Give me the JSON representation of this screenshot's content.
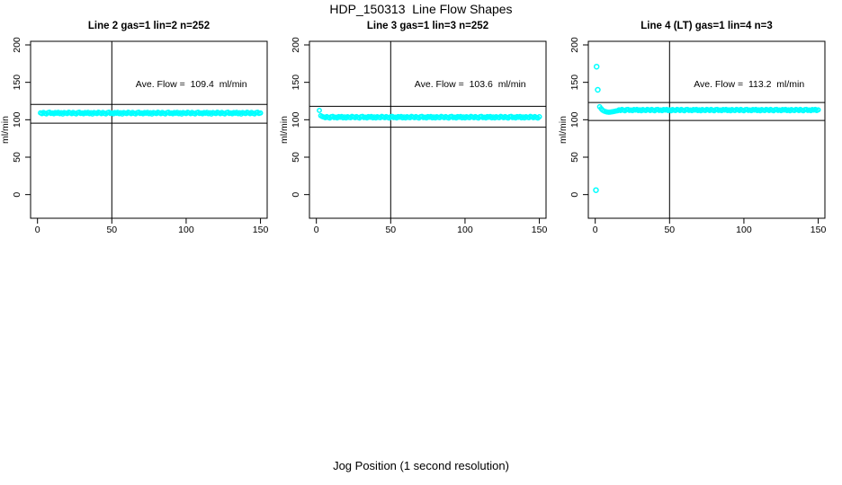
{
  "figure": {
    "title": "HDP_150313  Line Flow Shapes",
    "xlabel": "Jog Position (1 second resolution)",
    "colors": {
      "points": "#00ffff",
      "axis": "#000000",
      "background": "#ffffff"
    }
  },
  "chart_data": [
    {
      "type": "scatter",
      "title": "Line 2 gas=1 lin=2 n=252",
      "annotation": "Ave. Flow =  109.4  ml/min",
      "ave_flow_ml_min": 109.4,
      "ylabel": "ml/min",
      "xlim": [
        -4.65,
        154.5
      ],
      "ylim": [
        -31.6,
        204.8
      ],
      "xticks": [
        0,
        50,
        100,
        150
      ],
      "yticks": [
        0,
        50,
        100,
        150,
        200
      ],
      "vline_x": 50,
      "hlines": [
        120.5,
        95.5
      ],
      "annotation_pos": {
        "x": 103.5,
        "y": 148
      },
      "series": {
        "x_start": 2,
        "x_step": 1,
        "y": [
          109.2,
          108.2,
          109.8,
          108.6,
          107.8,
          109.5,
          110.1,
          108.4,
          109,
          108,
          109.7,
          108.7,
          109.9,
          108.1,
          109.3,
          107.7,
          109.6,
          108.9,
          108.3,
          110,
          109.2,
          108.2,
          109.8,
          108.6,
          107.8,
          109.5,
          110.1,
          108.4,
          109,
          108,
          109.7,
          108.7,
          109.9,
          108.1,
          109.3,
          107.7,
          109.6,
          108.9,
          108.3,
          110,
          109.2,
          108.2,
          109.8,
          108.6,
          107.8,
          109.5,
          110.1,
          108.4,
          109,
          108,
          109.7,
          108.7,
          109.9,
          108.1,
          109.3,
          107.7,
          109.6,
          108.9,
          108.3,
          110,
          109.2,
          108.2,
          109.8,
          108.6,
          107.8,
          109.5,
          110.1,
          108.4,
          109,
          108,
          109.7,
          108.7,
          109.9,
          108.1,
          109.3,
          107.7,
          109.6,
          108.9,
          108.3,
          110,
          109.2,
          108.2,
          109.8,
          108.6,
          107.8,
          109.5,
          110.1,
          108.4,
          109,
          108,
          109.7,
          108.7,
          109.9,
          108.1,
          109.3,
          107.7,
          109.6,
          108.9,
          108.3,
          110,
          109.2,
          108.2,
          109.8,
          108.6,
          107.8,
          109.5,
          110.1,
          108.4,
          109,
          108,
          109.7,
          108.7,
          109.9,
          108.1,
          109.3,
          107.7,
          109.6,
          108.9,
          108.3,
          110,
          109.2,
          108.2,
          109.8,
          108.6,
          107.8,
          109.5,
          110.1,
          108.4,
          109,
          108,
          109.7,
          108.7,
          109.9,
          108.1,
          109.3,
          107.7,
          109.6,
          108.9,
          108.3,
          110,
          109.2,
          108.2,
          109.8,
          108.6,
          107.8,
          109.5,
          110.1,
          108.4,
          109
        ]
      },
      "outliers": []
    },
    {
      "type": "scatter",
      "title": "Line 3 gas=1 lin=3 n=252",
      "annotation": "Ave. Flow =  103.6  ml/min",
      "ave_flow_ml_min": 103.6,
      "ylabel": "ml/min",
      "xlim": [
        -4.65,
        154.5
      ],
      "ylim": [
        -31.6,
        204.8
      ],
      "xticks": [
        0,
        50,
        100,
        150
      ],
      "yticks": [
        0,
        50,
        100,
        150,
        200
      ],
      "vline_x": 50,
      "hlines": [
        118,
        90
      ],
      "annotation_pos": {
        "x": 103.5,
        "y": 148
      },
      "series": {
        "x_start": 2,
        "x_step": 1,
        "y": [
          112.5,
          105.5,
          104.2,
          103.7,
          102.7,
          104.3,
          103.1,
          102.3,
          104,
          104.5,
          102.9,
          103.5,
          102.5,
          104.2,
          103.4,
          104.4,
          102.6,
          103.8,
          102.4,
          104.1,
          103.2,
          102.8,
          104.5,
          103.7,
          102.7,
          104.3,
          103.1,
          102.3,
          104,
          104.5,
          102.9,
          103.5,
          102.5,
          104.2,
          103.4,
          104.4,
          102.6,
          103.8,
          102.4,
          104.1,
          103.2,
          102.8,
          104.5,
          103.7,
          102.7,
          104.3,
          103.1,
          102.3,
          104,
          104.5,
          102.9,
          103.5,
          102.5,
          104.2,
          103.4,
          104.4,
          102.6,
          103.8,
          102.4,
          104.1,
          103.2,
          102.8,
          104.5,
          103.7,
          102.7,
          104.3,
          103.1,
          102.3,
          104,
          104.5,
          102.9,
          103.5,
          102.5,
          104.2,
          103.4,
          104.4,
          102.6,
          103.8,
          102.4,
          104.1,
          103.2,
          102.8,
          104.5,
          103.7,
          102.7,
          104.3,
          103.1,
          102.3,
          104,
          104.5,
          102.9,
          103.5,
          102.5,
          104.2,
          103.4,
          104.4,
          102.6,
          103.8,
          102.4,
          104.1,
          103.2,
          102.8,
          104.5,
          103.7,
          102.7,
          104.3,
          103.1,
          102.3,
          104,
          104.5,
          102.9,
          103.5,
          102.5,
          104.2,
          103.4,
          104.4,
          102.6,
          103.8,
          102.4,
          104.1,
          103.2,
          102.8,
          104.5,
          103.7,
          102.7,
          104.3,
          103.1,
          102.3,
          104,
          104.5,
          102.9,
          103.5,
          102.5,
          104.2,
          103.4,
          104.4,
          102.6,
          103.8,
          102.4,
          104.1,
          103.2,
          102.8,
          104.5,
          103.7,
          102.7,
          104.3,
          103.1,
          102.3,
          104
        ]
      },
      "outliers": []
    },
    {
      "type": "scatter",
      "title": "Line 4 (LT) gas=1 lin=4 n=3",
      "annotation": "Ave. Flow =  113.2  ml/min",
      "ave_flow_ml_min": 113.2,
      "ylabel": "ml/min",
      "xlim": [
        -4.65,
        154.5
      ],
      "ylim": [
        -31.6,
        204.8
      ],
      "xticks": [
        0,
        50,
        100,
        150
      ],
      "yticks": [
        0,
        50,
        100,
        150,
        200
      ],
      "vline_x": 50,
      "hlines": [
        123,
        99
      ],
      "annotation_pos": {
        "x": 103.5,
        "y": 148
      },
      "series": {
        "x_start": 3,
        "x_step": 1,
        "y": [
          117.5,
          114.8,
          112.8,
          111.6,
          110.8,
          110.3,
          110.1,
          110.2,
          110.5,
          110.9,
          111.3,
          111.7,
          112,
          113.3,
          112.4,
          113.8,
          112.7,
          112,
          113.5,
          113.9,
          112.5,
          113.1,
          112.2,
          113.7,
          112.9,
          113.8,
          112.3,
          113.3,
          112,
          113.6,
          112.8,
          112.4,
          113.9,
          113.3,
          112.4,
          113.8,
          112.7,
          112,
          113.5,
          113.9,
          112.5,
          113.1,
          112.2,
          113.7,
          112.9,
          113.8,
          112.3,
          113.3,
          112,
          113.6,
          112.8,
          112.4,
          113.9,
          113.3,
          112.4,
          113.8,
          112.7,
          112,
          113.5,
          113.9,
          112.5,
          113.1,
          112.2,
          113.7,
          112.9,
          113.8,
          112.3,
          113.3,
          112,
          113.6,
          112.8,
          112.4,
          113.9,
          113.3,
          112.4,
          113.8,
          112.7,
          112,
          113.5,
          113.9,
          112.5,
          113.1,
          112.2,
          113.7,
          112.9,
          113.8,
          112.3,
          113.3,
          112,
          113.6,
          112.8,
          112.4,
          113.9,
          113.3,
          112.4,
          113.8,
          112.7,
          112,
          113.5,
          113.9,
          112.5,
          113.1,
          112.2,
          113.7,
          112.9,
          113.8,
          112.3,
          113.3,
          112,
          113.6,
          112.8,
          112.4,
          113.9,
          113.3,
          112.4,
          113.8,
          112.7,
          112,
          113.5,
          113.9,
          112.5,
          113.1,
          112.2,
          113.7,
          112.9,
          113.8,
          112.3,
          113.3,
          112,
          113.6,
          112.8,
          112.4,
          113.9,
          113.3,
          112.4,
          113.8,
          112.7,
          112,
          113.5,
          113.9,
          112.5,
          113.1,
          112.2,
          113.7,
          112.9,
          113.8,
          112.3,
          113.3
        ]
      },
      "outliers": [
        [
          0.5,
          6
        ],
        [
          0.9,
          171
        ],
        [
          1.7,
          140
        ]
      ]
    }
  ]
}
